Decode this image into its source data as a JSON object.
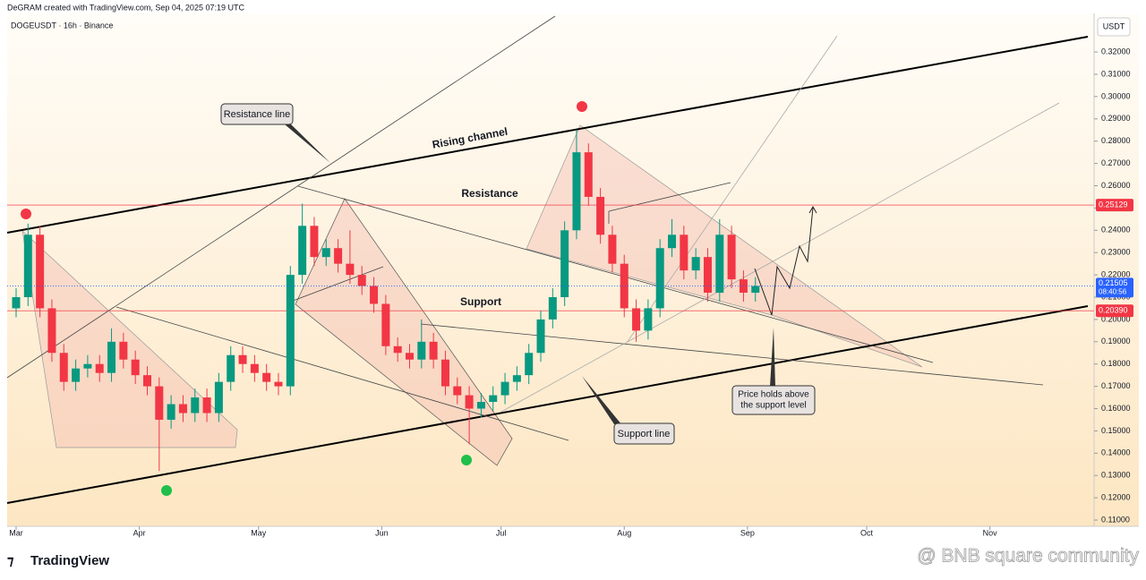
{
  "header": {
    "credit": "DeGRAM created with TradingView.com, Sep 04, 2025 07:19 UTC",
    "symbol": "DOGEUSDT · 16h · Binance"
  },
  "chart_data": {
    "type": "candlestick",
    "currency": "USDT",
    "up_color": "#089981",
    "down_color": "#f23645",
    "x": [
      0,
      3,
      6,
      9,
      12,
      15,
      18,
      21,
      24,
      27,
      30,
      33,
      36,
      39,
      42,
      45,
      48,
      51,
      54,
      57,
      60,
      63,
      66,
      69,
      72,
      75,
      78,
      81,
      84,
      87,
      90,
      93,
      96,
      99,
      102,
      105,
      108,
      111,
      114,
      117,
      120,
      123,
      126,
      129,
      132,
      135,
      138,
      141,
      144,
      147,
      150,
      153,
      156,
      159,
      162,
      165,
      168,
      171,
      174,
      177,
      180,
      183,
      186
    ],
    "open": [
      0.205,
      0.21,
      0.238,
      0.205,
      0.185,
      0.172,
      0.178,
      0.18,
      0.176,
      0.19,
      0.182,
      0.175,
      0.17,
      0.155,
      0.162,
      0.158,
      0.165,
      0.158,
      0.172,
      0.184,
      0.18,
      0.176,
      0.172,
      0.17,
      0.22,
      0.242,
      0.228,
      0.232,
      0.225,
      0.22,
      0.215,
      0.207,
      0.188,
      0.185,
      0.182,
      0.19,
      0.182,
      0.17,
      0.166,
      0.16,
      0.163,
      0.166,
      0.172,
      0.175,
      0.185,
      0.2,
      0.21,
      0.24,
      0.275,
      0.255,
      0.238,
      0.225,
      0.205,
      0.195,
      0.205,
      0.232,
      0.238,
      0.222,
      0.228,
      0.212,
      0.238,
      0.218,
      0.212
    ],
    "high": [
      0.214,
      0.243,
      0.242,
      0.209,
      0.189,
      0.182,
      0.184,
      0.184,
      0.196,
      0.194,
      0.186,
      0.179,
      0.174,
      0.166,
      0.166,
      0.169,
      0.169,
      0.176,
      0.188,
      0.188,
      0.184,
      0.18,
      0.176,
      0.224,
      0.252,
      0.246,
      0.236,
      0.236,
      0.24,
      0.224,
      0.219,
      0.211,
      0.192,
      0.189,
      0.2,
      0.194,
      0.186,
      0.174,
      0.17,
      0.167,
      0.17,
      0.176,
      0.179,
      0.189,
      0.204,
      0.214,
      0.244,
      0.285,
      0.279,
      0.259,
      0.242,
      0.229,
      0.209,
      0.209,
      0.236,
      0.245,
      0.242,
      0.232,
      0.232,
      0.245,
      0.242,
      0.222,
      0.219
    ],
    "low": [
      0.201,
      0.206,
      0.201,
      0.181,
      0.168,
      0.168,
      0.174,
      0.172,
      0.172,
      0.178,
      0.171,
      0.166,
      0.132,
      0.151,
      0.154,
      0.154,
      0.154,
      0.154,
      0.168,
      0.176,
      0.172,
      0.168,
      0.166,
      0.166,
      0.216,
      0.224,
      0.224,
      0.221,
      0.216,
      0.211,
      0.203,
      0.184,
      0.181,
      0.178,
      0.178,
      0.178,
      0.166,
      0.162,
      0.144,
      0.156,
      0.159,
      0.162,
      0.168,
      0.171,
      0.181,
      0.196,
      0.206,
      0.236,
      0.251,
      0.234,
      0.221,
      0.201,
      0.19,
      0.191,
      0.201,
      0.228,
      0.218,
      0.218,
      0.208,
      0.208,
      0.214,
      0.208,
      0.208
    ],
    "close": [
      0.21,
      0.238,
      0.205,
      0.185,
      0.172,
      0.178,
      0.18,
      0.176,
      0.19,
      0.182,
      0.175,
      0.17,
      0.155,
      0.162,
      0.158,
      0.165,
      0.158,
      0.172,
      0.184,
      0.18,
      0.176,
      0.172,
      0.17,
      0.22,
      0.242,
      0.228,
      0.232,
      0.225,
      0.22,
      0.215,
      0.207,
      0.188,
      0.185,
      0.182,
      0.19,
      0.182,
      0.17,
      0.166,
      0.16,
      0.163,
      0.166,
      0.172,
      0.175,
      0.185,
      0.2,
      0.21,
      0.24,
      0.275,
      0.255,
      0.238,
      0.225,
      0.205,
      0.195,
      0.205,
      0.232,
      0.238,
      0.222,
      0.228,
      0.212,
      0.238,
      0.218,
      0.212,
      0.215
    ],
    "xlim": [
      -2.25,
      271.2
    ],
    "xticks": [
      {
        "value": 0,
        "label": "Mar"
      },
      {
        "value": 31,
        "label": "Apr"
      },
      {
        "value": 61,
        "label": "May"
      },
      {
        "value": 92,
        "label": "Jun"
      },
      {
        "value": 122,
        "label": "Jul"
      },
      {
        "value": 153,
        "label": "Aug"
      },
      {
        "value": 184,
        "label": "Sep"
      },
      {
        "value": 214,
        "label": "Oct"
      },
      {
        "value": 245,
        "label": "Nov"
      }
    ],
    "ylim": [
      0.1072,
      0.3373
    ],
    "yticks": [
      {
        "value": 0.11,
        "label": "0.11000"
      },
      {
        "value": 0.12,
        "label": "0.12000"
      },
      {
        "value": 0.13,
        "label": "0.13000"
      },
      {
        "value": 0.14,
        "label": "0.14000"
      },
      {
        "value": 0.15,
        "label": "0.15000"
      },
      {
        "value": 0.16,
        "label": "0.16000"
      },
      {
        "value": 0.17,
        "label": "0.17000"
      },
      {
        "value": 0.18,
        "label": "0.18000"
      },
      {
        "value": 0.19,
        "label": "0.19000"
      },
      {
        "value": 0.2,
        "label": "0.20000"
      },
      {
        "value": 0.21,
        "label": "0.21000"
      },
      {
        "value": 0.22,
        "label": "0.22000"
      },
      {
        "value": 0.23,
        "label": "0.23000"
      },
      {
        "value": 0.24,
        "label": "0.24000"
      },
      {
        "value": 0.25,
        "label": "0.25000"
      },
      {
        "value": 0.26,
        "label": "0.26000"
      },
      {
        "value": 0.27,
        "label": "0.27000"
      },
      {
        "value": 0.28,
        "label": "0.28000"
      },
      {
        "value": 0.29,
        "label": "0.29000"
      },
      {
        "value": 0.3,
        "label": "0.30000"
      },
      {
        "value": 0.31,
        "label": "0.31000"
      },
      {
        "value": 0.32,
        "label": "0.32000"
      }
    ],
    "levels": [
      0.25129,
      {
        "value": 0.2039,
        "label": "0.20390"
      }
    ],
    "level_color": "#f23645",
    "last": {
      "value": 0.21505,
      "countdown": "08:40:56",
      "color": "#2962ff"
    },
    "annotations": [
      "Resistance line",
      "Rising channel",
      "Resistance",
      "Support",
      "Support line",
      "Price holds above",
      "the support level"
    ]
  },
  "footer": {
    "logo": "TradingView",
    "watermark": "@ BNB square community"
  }
}
